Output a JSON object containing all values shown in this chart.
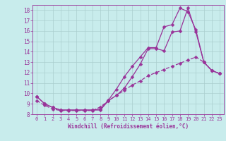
{
  "xlabel": "Windchill (Refroidissement éolien,°C)",
  "background_color": "#c8ecec",
  "grid_color": "#aacece",
  "line_color": "#993399",
  "spine_color": "#993399",
  "xlim": [
    -0.5,
    23.5
  ],
  "ylim": [
    8,
    18.5
  ],
  "xticks": [
    0,
    1,
    2,
    3,
    4,
    5,
    6,
    7,
    8,
    9,
    10,
    11,
    12,
    13,
    14,
    15,
    16,
    17,
    18,
    19,
    20,
    21,
    22,
    23
  ],
  "yticks": [
    8,
    9,
    10,
    11,
    12,
    13,
    14,
    15,
    16,
    17,
    18
  ],
  "line1_x": [
    0,
    1,
    2,
    3,
    4,
    5,
    6,
    7,
    8,
    9,
    10,
    11,
    12,
    13,
    14,
    15,
    16,
    17,
    18,
    19,
    20,
    21,
    22,
    23
  ],
  "line1_y": [
    9.7,
    9.0,
    8.65,
    8.4,
    8.4,
    8.4,
    8.4,
    8.4,
    8.4,
    9.3,
    9.8,
    10.5,
    11.6,
    12.8,
    14.3,
    14.3,
    14.1,
    15.9,
    16.0,
    18.2,
    15.9,
    13.0,
    12.2,
    11.9
  ],
  "line2_x": [
    0,
    1,
    2,
    3,
    4,
    5,
    6,
    7,
    8,
    9,
    10,
    11,
    12,
    13,
    14,
    15,
    16,
    17,
    18,
    19,
    20,
    21,
    22,
    23
  ],
  "line2_y": [
    9.7,
    9.0,
    8.65,
    8.4,
    8.4,
    8.4,
    8.4,
    8.4,
    8.5,
    9.35,
    10.4,
    11.6,
    12.6,
    13.5,
    14.4,
    14.4,
    16.4,
    16.6,
    18.2,
    17.85,
    16.1,
    13.0,
    12.2,
    11.9
  ],
  "line3_x": [
    0,
    1,
    2,
    3,
    4,
    5,
    6,
    7,
    8,
    9,
    10,
    11,
    12,
    13,
    14,
    15,
    16,
    17,
    18,
    19,
    20,
    21,
    22,
    23
  ],
  "line3_y": [
    9.3,
    8.85,
    8.5,
    8.35,
    8.35,
    8.35,
    8.35,
    8.35,
    8.7,
    9.3,
    9.8,
    10.3,
    10.8,
    11.2,
    11.7,
    12.0,
    12.3,
    12.6,
    12.9,
    13.2,
    13.5,
    13.0,
    12.2,
    11.9
  ]
}
